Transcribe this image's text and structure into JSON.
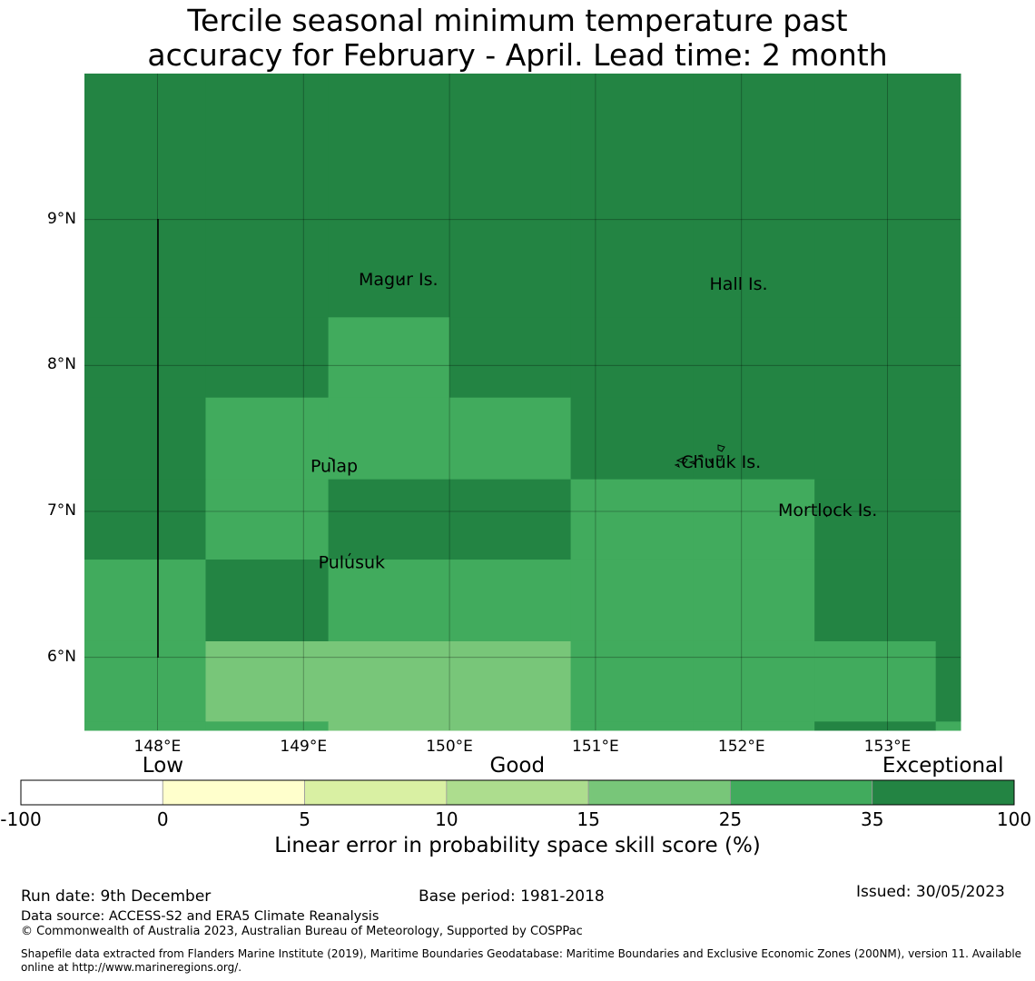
{
  "title_line1": "Tercile seasonal minimum temperature past",
  "title_line2": "accuracy for February - April. Lead time: 2 month",
  "map": {
    "lon_range": [
      147.5,
      153.5
    ],
    "lat_range": [
      5.5,
      10.0
    ],
    "lat_ticks": [
      {
        "value": 9,
        "label": "9°N"
      },
      {
        "value": 8,
        "label": "8°N"
      },
      {
        "value": 7,
        "label": "7°N"
      },
      {
        "value": 6,
        "label": "6°N"
      }
    ],
    "lon_ticks": [
      {
        "value": 148,
        "label": "148°E"
      },
      {
        "value": 149,
        "label": "149°E"
      },
      {
        "value": 150,
        "label": "150°E"
      },
      {
        "value": 151,
        "label": "151°E"
      },
      {
        "value": 152,
        "label": "152°E"
      },
      {
        "value": 153,
        "label": "153°E"
      }
    ],
    "places": [
      {
        "name": "Magur Is.",
        "lon": 149.65,
        "lat": 8.55
      },
      {
        "name": "Hall Is.",
        "lon": 151.98,
        "lat": 8.52
      },
      {
        "name": "Pulap",
        "lon": 149.21,
        "lat": 7.27
      },
      {
        "name": "Chuuk Is.",
        "lon": 151.86,
        "lat": 7.3
      },
      {
        "name": "Mortlock Is.",
        "lon": 152.59,
        "lat": 6.97
      },
      {
        "name": "Pulusuk",
        "lon": 149.33,
        "lat": 6.61
      }
    ]
  },
  "skill_grid": {
    "lon_edges": [
      147.5,
      148.33,
      149.17,
      150.0,
      150.83,
      151.67,
      152.5,
      153.33,
      153.5
    ],
    "lat_edges": [
      10.0,
      8.33,
      7.78,
      7.22,
      6.67,
      6.11,
      5.56,
      5.5
    ],
    "category_rows": [
      [
        "exceptional",
        "exceptional",
        "exceptional",
        "exceptional",
        "exceptional",
        "exceptional",
        "exceptional",
        "exceptional"
      ],
      [
        "exceptional",
        "exceptional",
        "very-good",
        "exceptional",
        "exceptional",
        "exceptional",
        "exceptional",
        "exceptional"
      ],
      [
        "exceptional",
        "very-good",
        "very-good",
        "very-good",
        "exceptional",
        "exceptional",
        "exceptional",
        "exceptional"
      ],
      [
        "exceptional",
        "very-good",
        "exceptional",
        "exceptional",
        "very-good",
        "very-good",
        "exceptional",
        "exceptional"
      ],
      [
        "very-good",
        "exceptional",
        "very-good",
        "very-good",
        "very-good",
        "very-good",
        "exceptional",
        "exceptional"
      ],
      [
        "very-good",
        "good",
        "good",
        "good",
        "very-good",
        "very-good",
        "very-good",
        "exceptional"
      ],
      [
        "very-good",
        "very-good",
        "good",
        "good",
        "very-good",
        "very-good",
        "exceptional",
        "very-good"
      ]
    ],
    "colors": {
      "exceptional": "#238443",
      "very-good": "#41ab5d",
      "good": "#78c679"
    }
  },
  "colorbar": {
    "category_labels": [
      {
        "text": "Low",
        "at": 1
      },
      {
        "text": "Good",
        "at": 3.5
      },
      {
        "text": "Exceptional",
        "at": 6.5
      }
    ],
    "segments": [
      {
        "from": "-100",
        "to": "0",
        "color": "#ffffff"
      },
      {
        "from": "0",
        "to": "5",
        "color": "#ffffcc"
      },
      {
        "from": "5",
        "to": "10",
        "color": "#d9f0a3"
      },
      {
        "from": "10",
        "to": "15",
        "color": "#addd8e"
      },
      {
        "from": "15",
        "to": "25",
        "color": "#78c679"
      },
      {
        "from": "25",
        "to": "35",
        "color": "#41ab5d"
      },
      {
        "from": "35",
        "to": "100",
        "color": "#238443"
      }
    ],
    "tick_labels": [
      "-100",
      "0",
      "5",
      "10",
      "15",
      "25",
      "35",
      "100"
    ],
    "title": "Linear error in probability space skill score (%)"
  },
  "footer": {
    "run_date": "Run date: 9th December",
    "base_period": "Base period: 1981-2018",
    "issued": "Issued: 30/05/2023",
    "data_source": "Data source: ACCESS-S2 and ERA5 Climate Reanalysis",
    "copyright": "© Commonwealth of Australia 2023, Australian Bureau of Meteorology, Supported by COSPPac",
    "shapefile": "Shapefile data extracted from Flanders Marine Institute (2019), Maritime Boundaries Geodatabase: Maritime Boundaries and Exclusive Economic Zones (200NM), version 11. Available online at http://www.marineregions.org/."
  }
}
